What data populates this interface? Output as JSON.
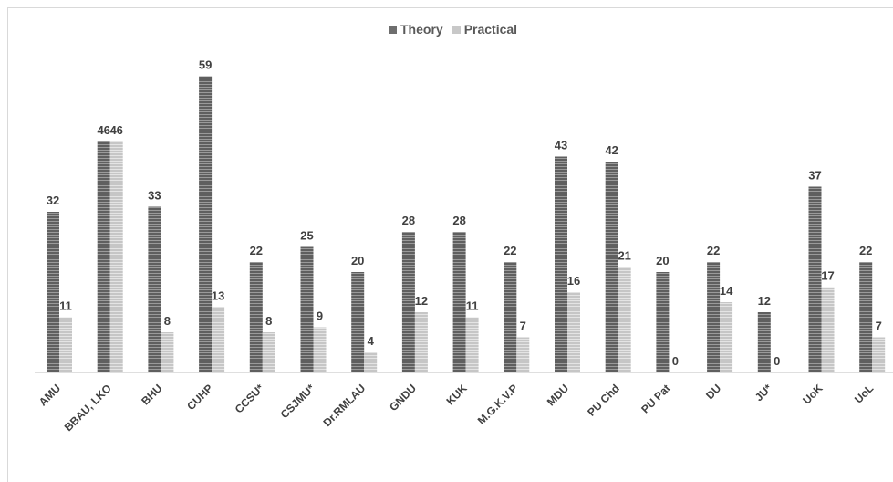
{
  "chart_data": {
    "type": "bar",
    "categories": [
      "AMU",
      "BBAU, LKO",
      "BHU",
      "CUHP",
      "CCSU*",
      "CSJMU*",
      "Dr.RMLAU",
      "GNDU",
      "KUK",
      "M.G.K.V.P",
      "MDU",
      "PU Chd",
      "PU Pat",
      "DU",
      "JU*",
      "UoK",
      "UoL"
    ],
    "series": [
      {
        "name": "Theory",
        "values": [
          32,
          46,
          33,
          59,
          22,
          25,
          20,
          28,
          28,
          22,
          43,
          42,
          20,
          22,
          12,
          37,
          22
        ],
        "color": "#6e6e6e"
      },
      {
        "name": "Practical",
        "values": [
          11,
          46,
          8,
          13,
          8,
          9,
          4,
          12,
          11,
          7,
          16,
          21,
          0,
          14,
          0,
          17,
          7
        ],
        "color": "#c8c8c8"
      }
    ],
    "title": "",
    "xlabel": "",
    "ylabel": "",
    "ylim": [
      0,
      63
    ],
    "grid": false,
    "legend": "top-center",
    "data_labels": true
  }
}
